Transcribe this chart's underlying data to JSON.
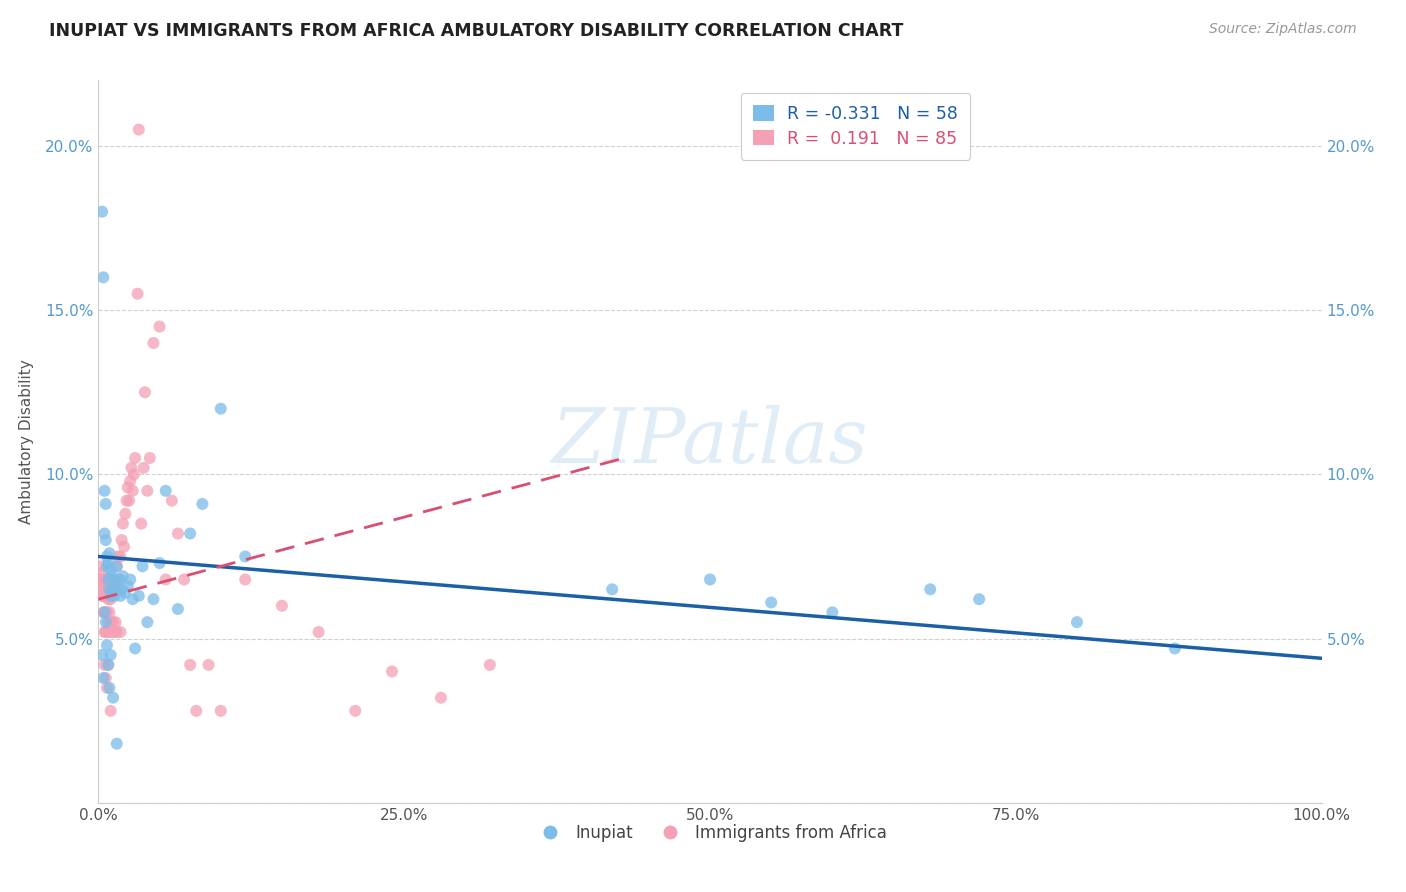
{
  "title": "INUPIAT VS IMMIGRANTS FROM AFRICA AMBULATORY DISABILITY CORRELATION CHART",
  "source": "Source: ZipAtlas.com",
  "ylabel": "Ambulatory Disability",
  "watermark": "ZIPatlas",
  "series1_name": "Inupiat",
  "series2_name": "Immigrants from Africa",
  "series1_color": "#7bbce8",
  "series2_color": "#f4a0b5",
  "series1_line_color": "#1a5fa8",
  "series2_line_color": "#d94f70",
  "series1_R": -0.331,
  "series1_N": 58,
  "series2_R": 0.191,
  "series2_N": 85,
  "xlim": [
    0.0,
    1.0
  ],
  "ylim": [
    0.0,
    0.22
  ],
  "xticks": [
    0.0,
    0.25,
    0.5,
    0.75,
    1.0
  ],
  "xticklabels": [
    "0.0%",
    "25.0%",
    "50.0%",
    "75.0%",
    "100.0%"
  ],
  "yticks": [
    0.0,
    0.05,
    0.1,
    0.15,
    0.2
  ],
  "yticklabels": [
    "",
    "5.0%",
    "10.0%",
    "15.0%",
    "20.0%"
  ],
  "series1_line_x0": 0.0,
  "series1_line_x1": 1.0,
  "series1_line_y0": 0.075,
  "series1_line_y1": 0.044,
  "series2_line_x0": 0.0,
  "series2_line_x1": 0.43,
  "series2_line_y0": 0.062,
  "series2_line_y1": 0.105,
  "series1_x": [
    0.003,
    0.004,
    0.005,
    0.005,
    0.006,
    0.006,
    0.007,
    0.007,
    0.008,
    0.008,
    0.009,
    0.009,
    0.01,
    0.01,
    0.011,
    0.012,
    0.013,
    0.014,
    0.015,
    0.016,
    0.017,
    0.018,
    0.019,
    0.02,
    0.022,
    0.024,
    0.026,
    0.028,
    0.03,
    0.033,
    0.036,
    0.04,
    0.045,
    0.05,
    0.055,
    0.065,
    0.075,
    0.085,
    0.1,
    0.12,
    0.003,
    0.004,
    0.005,
    0.006,
    0.007,
    0.008,
    0.009,
    0.01,
    0.012,
    0.015,
    0.42,
    0.5,
    0.55,
    0.6,
    0.68,
    0.72,
    0.8,
    0.88
  ],
  "series1_y": [
    0.18,
    0.16,
    0.095,
    0.082,
    0.091,
    0.08,
    0.075,
    0.072,
    0.073,
    0.068,
    0.076,
    0.065,
    0.071,
    0.063,
    0.069,
    0.065,
    0.063,
    0.068,
    0.072,
    0.065,
    0.068,
    0.063,
    0.065,
    0.069,
    0.064,
    0.066,
    0.068,
    0.062,
    0.047,
    0.063,
    0.072,
    0.055,
    0.062,
    0.073,
    0.095,
    0.059,
    0.082,
    0.091,
    0.12,
    0.075,
    0.045,
    0.038,
    0.058,
    0.055,
    0.048,
    0.042,
    0.035,
    0.045,
    0.032,
    0.018,
    0.065,
    0.068,
    0.061,
    0.058,
    0.065,
    0.062,
    0.055,
    0.047
  ],
  "series2_x": [
    0.001,
    0.002,
    0.002,
    0.003,
    0.003,
    0.003,
    0.003,
    0.004,
    0.004,
    0.004,
    0.005,
    0.005,
    0.005,
    0.005,
    0.006,
    0.006,
    0.006,
    0.006,
    0.007,
    0.007,
    0.007,
    0.008,
    0.008,
    0.008,
    0.009,
    0.009,
    0.009,
    0.01,
    0.01,
    0.01,
    0.011,
    0.011,
    0.012,
    0.012,
    0.013,
    0.013,
    0.014,
    0.014,
    0.015,
    0.015,
    0.016,
    0.017,
    0.018,
    0.018,
    0.019,
    0.02,
    0.021,
    0.022,
    0.023,
    0.024,
    0.025,
    0.026,
    0.027,
    0.028,
    0.029,
    0.03,
    0.032,
    0.033,
    0.035,
    0.037,
    0.038,
    0.04,
    0.042,
    0.045,
    0.05,
    0.055,
    0.06,
    0.065,
    0.07,
    0.075,
    0.08,
    0.09,
    0.1,
    0.12,
    0.15,
    0.18,
    0.21,
    0.24,
    0.28,
    0.32,
    0.005,
    0.006,
    0.007,
    0.008,
    0.01
  ],
  "series2_y": [
    0.068,
    0.072,
    0.065,
    0.063,
    0.068,
    0.065,
    0.07,
    0.058,
    0.063,
    0.068,
    0.052,
    0.058,
    0.063,
    0.068,
    0.052,
    0.058,
    0.063,
    0.068,
    0.052,
    0.058,
    0.065,
    0.055,
    0.062,
    0.068,
    0.052,
    0.058,
    0.065,
    0.055,
    0.062,
    0.068,
    0.052,
    0.065,
    0.055,
    0.068,
    0.052,
    0.065,
    0.055,
    0.065,
    0.052,
    0.072,
    0.075,
    0.068,
    0.052,
    0.075,
    0.08,
    0.085,
    0.078,
    0.088,
    0.092,
    0.096,
    0.092,
    0.098,
    0.102,
    0.095,
    0.1,
    0.105,
    0.155,
    0.205,
    0.085,
    0.102,
    0.125,
    0.095,
    0.105,
    0.14,
    0.145,
    0.068,
    0.092,
    0.082,
    0.068,
    0.042,
    0.028,
    0.042,
    0.028,
    0.068,
    0.06,
    0.052,
    0.028,
    0.04,
    0.032,
    0.042,
    0.042,
    0.038,
    0.035,
    0.042,
    0.028
  ]
}
